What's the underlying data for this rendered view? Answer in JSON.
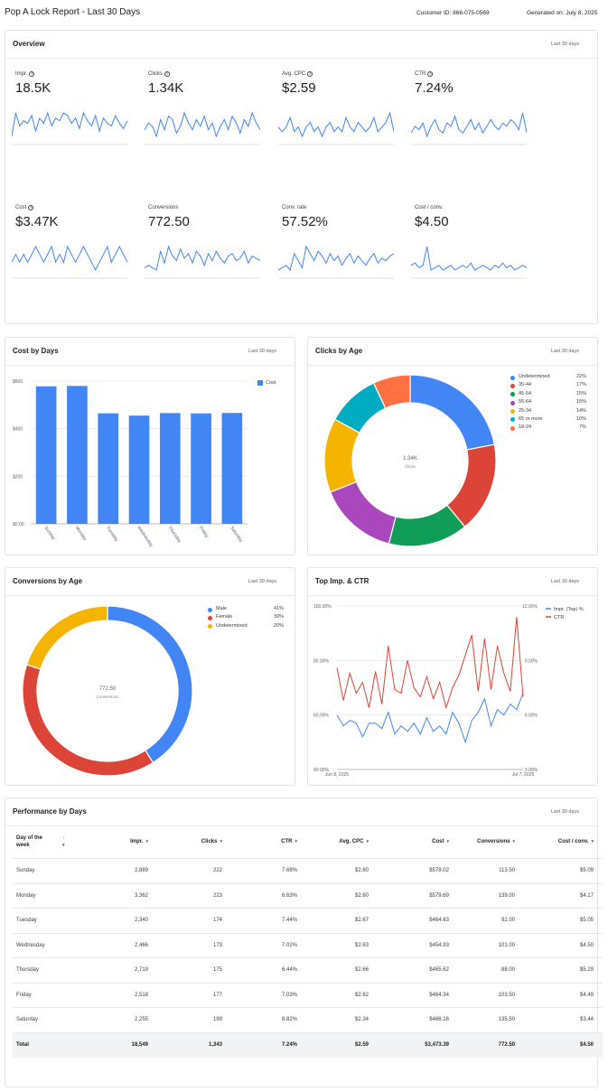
{
  "header": {
    "title": "Pop A Lock Report - Last 30 Days",
    "customer_id": "Customer ID: 868-075-0569",
    "generated_on": "Generated on: July 8, 2025"
  },
  "overview": {
    "title": "Overview",
    "range": "Last 30 days",
    "kpis": [
      {
        "label": "Impr.",
        "value": "18.5K",
        "help": true,
        "spark": [
          5,
          14,
          9,
          11,
          10,
          13,
          7,
          12,
          10,
          14,
          9,
          12,
          11,
          14,
          13,
          10,
          12,
          8,
          14,
          11,
          9,
          13,
          7,
          12,
          10,
          9,
          13,
          10,
          8,
          11
        ]
      },
      {
        "label": "Clicks",
        "value": "1.34K",
        "help": true,
        "spark": [
          9,
          11,
          10,
          7,
          12,
          9,
          13,
          12,
          8,
          10,
          14,
          11,
          9,
          12,
          10,
          13,
          9,
          11,
          7,
          10,
          12,
          9,
          13,
          11,
          8,
          12,
          10,
          14,
          11,
          9
        ]
      },
      {
        "label": "Avg. CPC",
        "value": "$2.59",
        "help": true,
        "spark": [
          10,
          9,
          10,
          12,
          9,
          10,
          8,
          10,
          11,
          9,
          10,
          8,
          10,
          11,
          9,
          10,
          9,
          12,
          10,
          9,
          11,
          10,
          9,
          10,
          12,
          9,
          10,
          11,
          13,
          9
        ]
      },
      {
        "label": "CTR",
        "value": "7.24%",
        "help": true,
        "spark": [
          8,
          10,
          9,
          11,
          7,
          10,
          12,
          9,
          8,
          11,
          10,
          13,
          9,
          8,
          10,
          12,
          9,
          11,
          8,
          10,
          12,
          10,
          9,
          11,
          10,
          12,
          11,
          9,
          14,
          8
        ]
      },
      {
        "label": "Cost",
        "value": "$3.47K",
        "help": true,
        "spark": [
          10,
          11,
          10,
          11,
          10,
          11,
          12,
          11,
          10,
          11,
          12,
          10,
          11,
          10,
          12,
          11,
          10,
          11,
          12,
          11,
          10,
          9,
          10,
          11,
          12,
          10,
          11,
          12,
          11,
          10
        ]
      },
      {
        "label": "Conversions",
        "value": "772.50",
        "help": false,
        "spark": [
          5,
          6,
          5,
          4,
          12,
          7,
          14,
          10,
          8,
          13,
          9,
          11,
          7,
          12,
          10,
          6,
          11,
          8,
          12,
          9,
          7,
          10,
          11,
          8,
          9,
          12,
          7,
          10,
          9,
          8
        ]
      },
      {
        "label": "Conv. rate",
        "value": "57.52%",
        "help": false,
        "spark": [
          5,
          6,
          7,
          5,
          12,
          9,
          6,
          15,
          12,
          9,
          13,
          11,
          8,
          12,
          9,
          11,
          7,
          10,
          12,
          8,
          11,
          9,
          7,
          10,
          12,
          8,
          10,
          9,
          11,
          12
        ]
      },
      {
        "label": "Cost / conv.",
        "value": "$4.50",
        "help": false,
        "spark": [
          10,
          11,
          9,
          10,
          18,
          8,
          9,
          10,
          8,
          9,
          10,
          8,
          9,
          10,
          9,
          11,
          8,
          9,
          10,
          9,
          8,
          10,
          9,
          11,
          9,
          10,
          8,
          9,
          10,
          9
        ]
      }
    ],
    "line_color": "#4285f4"
  },
  "cost_by_days": {
    "title": "Cost by Days",
    "range": "Last 30 days",
    "legend": "Cost",
    "color": "#4285f4"
  },
  "clicks_by_age": {
    "title": "Clicks by Age",
    "range": "Last 30 days",
    "center_value": "1.34K",
    "center_label": "Clicks",
    "legend": [
      {
        "label": "Undetermined",
        "pct": "22%",
        "color": "#4285f4"
      },
      {
        "label": "35-44",
        "pct": "17%",
        "color": "#db4437"
      },
      {
        "label": "45-54",
        "pct": "15%",
        "color": "#0f9d58"
      },
      {
        "label": "55-64",
        "pct": "15%",
        "color": "#ab47bc"
      },
      {
        "label": "25-34",
        "pct": "14%",
        "color": "#f4b400"
      },
      {
        "label": "65 or more",
        "pct": "10%",
        "color": "#00acc1"
      },
      {
        "label": "18-24",
        "pct": "7%",
        "color": "#ff7043"
      }
    ]
  },
  "conversions_by_age": {
    "title": "Conversions by Age",
    "range": "Last 30 days",
    "center_value": "772.50",
    "center_label": "Conversions",
    "legend": [
      {
        "label": "Male",
        "pct": "41%",
        "color": "#4285f4"
      },
      {
        "label": "Female",
        "pct": "39%",
        "color": "#db4437"
      },
      {
        "label": "Undetermined",
        "pct": "20%",
        "color": "#f4b400"
      }
    ]
  },
  "top_imp_ctr": {
    "title": "Top Imp. & CTR",
    "range": "Last 30 days",
    "legend": [
      {
        "label": "Impr. (Top) %",
        "color": "#4285f4"
      },
      {
        "label": "CTR",
        "color": "#db4437"
      }
    ]
  },
  "performance": {
    "title": "Performance by Days",
    "range": "Last 30 days",
    "columns": [
      "Day of the week",
      "Impr.",
      "Clicks",
      "CTR",
      "Avg. CPC",
      "Cost",
      "Conversions",
      "Cost / conv."
    ],
    "rows": [
      [
        "Sunday",
        "2,889",
        "222",
        "7.68%",
        "$2.60",
        "$578.02",
        "113.50",
        "$5.09"
      ],
      [
        "Monday",
        "3,362",
        "223",
        "6.63%",
        "$2.60",
        "$579.69",
        "139.00",
        "$4.17"
      ],
      [
        "Tuesday",
        "2,340",
        "174",
        "7.44%",
        "$2.67",
        "$464.63",
        "92.00",
        "$5.05"
      ],
      [
        "Wednesday",
        "2,466",
        "173",
        "7.02%",
        "$2.63",
        "$454.93",
        "101.00",
        "$4.50"
      ],
      [
        "Thursday",
        "2,719",
        "175",
        "6.44%",
        "$2.66",
        "$465.62",
        "88.00",
        "$5.29"
      ],
      [
        "Friday",
        "2,518",
        "177",
        "7.03%",
        "$2.62",
        "$464.34",
        "103.50",
        "$4.49"
      ],
      [
        "Saturday",
        "2,255",
        "199",
        "8.82%",
        "$2.34",
        "$466.16",
        "135.50",
        "$3.44"
      ]
    ],
    "total": [
      "Total",
      "18,549",
      "1,343",
      "7.24%",
      "$2.59",
      "$3,473.39",
      "772.50",
      "$4.50"
    ]
  },
  "chart_data": [
    {
      "type": "bar",
      "title": "Cost by Days",
      "categories": [
        "Sunday",
        "Monday",
        "Tuesday",
        "Wednesday",
        "Thursday",
        "Friday",
        "Saturday"
      ],
      "series": [
        {
          "name": "Cost",
          "values": [
            578.02,
            579.69,
            464.63,
            454.93,
            465.62,
            464.34,
            466.16
          ]
        }
      ],
      "ylim": [
        0,
        600
      ],
      "yticks": [
        "$0.00",
        "$200",
        "$400",
        "$600"
      ],
      "ytick_values": [
        0,
        200,
        400,
        600
      ],
      "grid": true,
      "legend_position": "top-right"
    },
    {
      "type": "pie",
      "title": "Clicks by Age",
      "labels": [
        "Undetermined",
        "35-44",
        "45-54",
        "55-64",
        "25-34",
        "65 or more",
        "18-24"
      ],
      "values": [
        22,
        17,
        15,
        15,
        14,
        10,
        7
      ]
    },
    {
      "type": "pie",
      "title": "Conversions by Age",
      "labels": [
        "Male",
        "Female",
        "Undetermined"
      ],
      "values": [
        41,
        39,
        20
      ]
    },
    {
      "type": "line",
      "title": "Top Imp. & CTR",
      "x_start": "Jun 8, 2025",
      "x_end": "Jul 7, 2025",
      "series": [
        {
          "name": "Impr. (Top) %",
          "axis": "left",
          "values": [
            60,
            56,
            58,
            57,
            52,
            57,
            57,
            55,
            61,
            53,
            56,
            54,
            57,
            53,
            59,
            54,
            56,
            53,
            61,
            57,
            50,
            58,
            61,
            66,
            56,
            62,
            60,
            64,
            62,
            68
          ]
        },
        {
          "name": "CTR",
          "axis": "right",
          "values": [
            8.6,
            6.8,
            8.3,
            7.2,
            7.8,
            6.4,
            8.4,
            6.6,
            9.8,
            7.4,
            7.2,
            9.0,
            7.5,
            7.0,
            8.1,
            6.9,
            7.8,
            6.4,
            7.5,
            8.2,
            9.3,
            10.4,
            7.3,
            10.2,
            7.4,
            9.8,
            8.3,
            7.3,
            11.4,
            7.0
          ]
        }
      ],
      "ylim_left": [
        40,
        100
      ],
      "ylim_right": [
        3,
        12
      ],
      "yticks_left": [
        "40.00%",
        "60.00%",
        "80.00%",
        "100.00%"
      ],
      "yticks_right": [
        "3.00%",
        "6.00%",
        "9.00%",
        "12.00%"
      ],
      "xticks": [
        "Jun 8, 2025",
        "Jul 7, 2025"
      ],
      "legend_position": "top-right"
    }
  ]
}
